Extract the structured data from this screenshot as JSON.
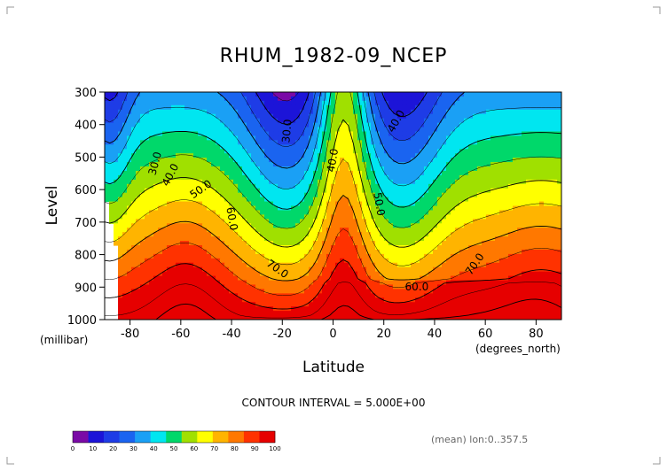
{
  "chart_data": {
    "type": "heatmap",
    "title": "RHUM_1982-09_NCEP",
    "xlabel": "Latitude",
    "ylabel": "Level",
    "x_unit": "(degrees_north)",
    "y_unit": "(millibar)",
    "x_ticks": [
      -80,
      -60,
      -40,
      -20,
      0,
      20,
      40,
      60,
      80
    ],
    "y_ticks": [
      300,
      400,
      500,
      600,
      700,
      800,
      900,
      1000
    ],
    "xlim": [
      -90,
      90
    ],
    "ylim": [
      1000,
      300
    ],
    "contour_interval_text": "CONTOUR INTERVAL = 5.000E+00",
    "footnote": "(mean) lon:0..357.5",
    "contour_labels": [
      "30.0",
      "40.0",
      "50.0",
      "60.0",
      "70.0",
      "30.0",
      "40.0",
      "50.0",
      "40.0",
      "60.0",
      "70.0"
    ],
    "colorbar": {
      "labels": [
        "0",
        "10",
        "20",
        "30",
        "40",
        "50",
        "60",
        "70",
        "80",
        "90",
        "100"
      ],
      "colors": [
        "#7a0aa6",
        "#1c14d8",
        "#1e3ce6",
        "#1a64f0",
        "#1aa0f5",
        "#00e6f0",
        "#00d86a",
        "#a0e000",
        "#ffff00",
        "#ffb400",
        "#ff7800",
        "#ff3200",
        "#e60000"
      ]
    }
  }
}
